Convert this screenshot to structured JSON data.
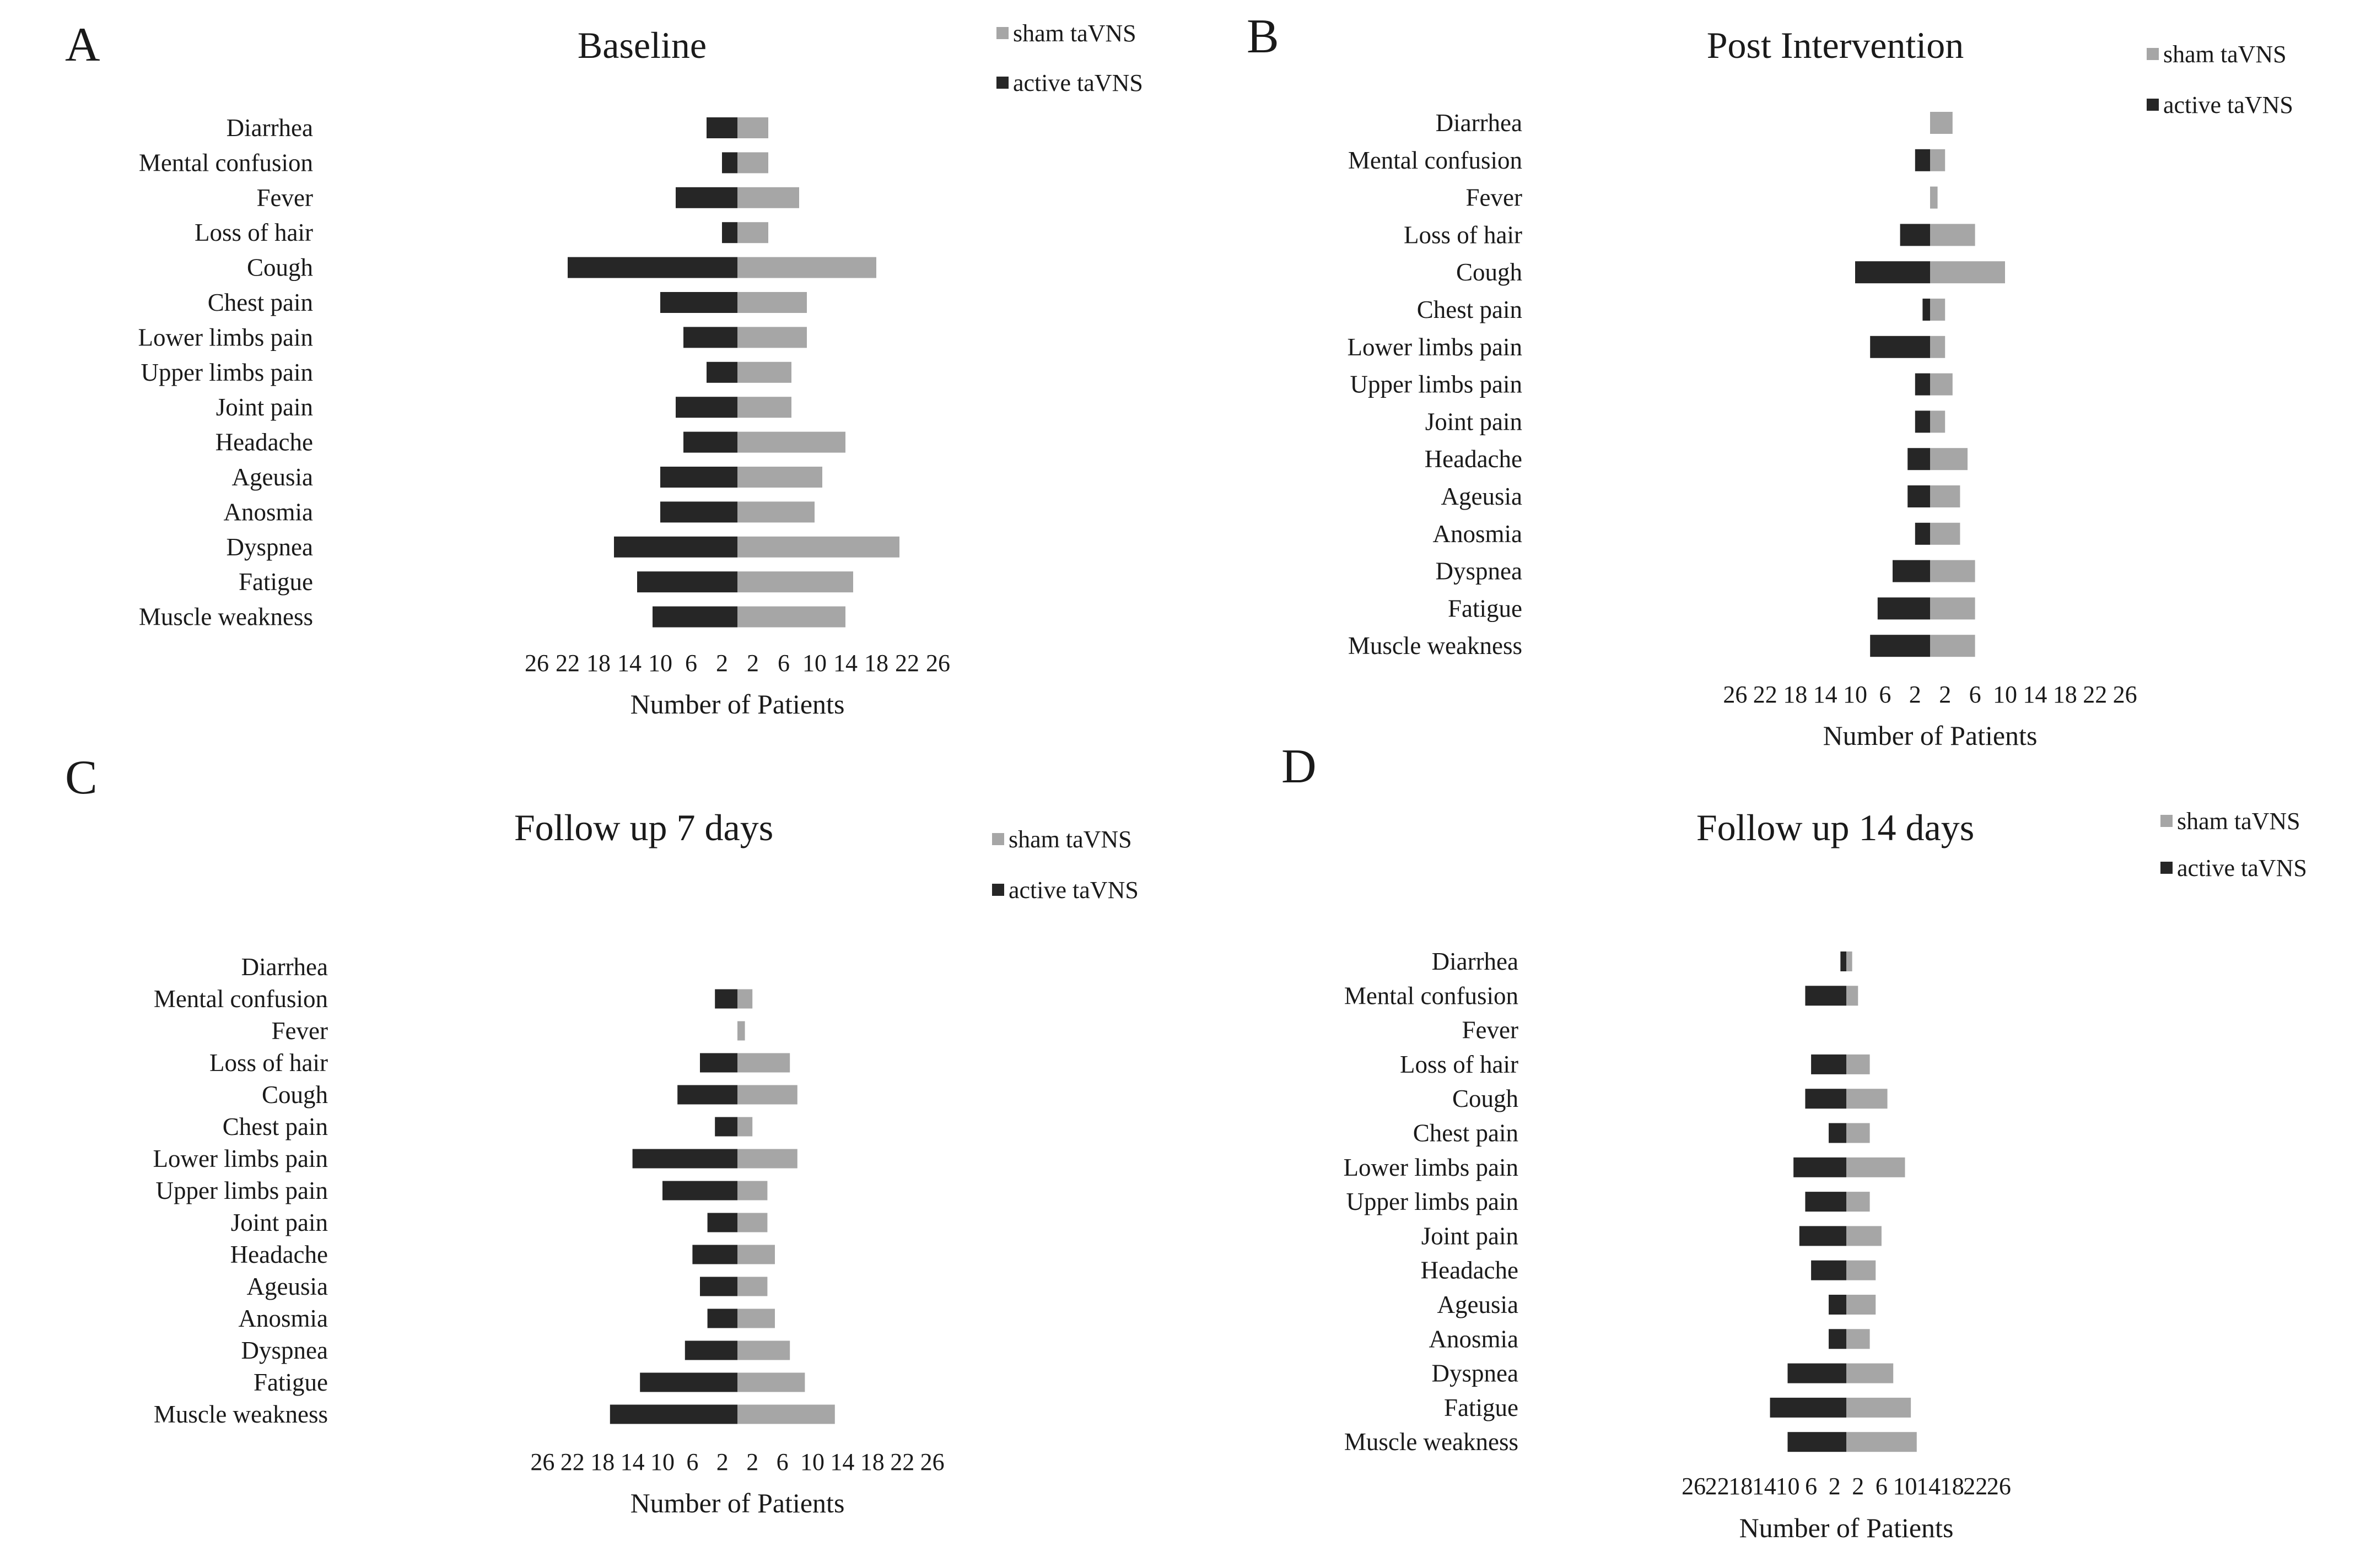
{
  "figure": {
    "background": "#ffffff",
    "colors": {
      "sham": "#a6a6a6",
      "active": "#262626"
    }
  },
  "chart_data": [
    {
      "panel_label": "A",
      "type": "bar",
      "orientation": "horizontal-butterfly",
      "title": "Baseline",
      "xlabel": "Number of Patients",
      "xlim": [
        -26,
        26
      ],
      "ticks": [
        -26,
        -22,
        -18,
        -14,
        -10,
        -6,
        -2,
        2,
        6,
        10,
        14,
        18,
        22,
        26
      ],
      "tick_labels": [
        "26",
        "22",
        "18",
        "14",
        "10",
        "6",
        "2",
        "2",
        "6",
        "10",
        "14",
        "18",
        "22",
        "26"
      ],
      "categories": [
        "Diarrhea",
        "Mental confusion",
        "Fever",
        "Loss of hair",
        "Cough",
        "Chest pain",
        "Lower limbs pain",
        "Upper limbs pain",
        "Joint pain",
        "Headache",
        "Ageusia",
        "Anosmia",
        "Dyspnea",
        "Fatigue",
        "Muscle weakness"
      ],
      "legend": [
        "sham taVNS",
        "active taVNS"
      ],
      "series": [
        {
          "name": "sham taVNS",
          "direction": "right",
          "values": [
            4,
            4,
            8,
            4,
            18,
            9,
            9,
            7,
            7,
            14,
            11,
            10,
            21,
            15,
            14
          ]
        },
        {
          "name": "active taVNS",
          "direction": "left",
          "values": [
            4,
            2,
            8,
            2,
            22,
            10,
            7,
            4,
            8,
            7,
            10,
            10,
            16,
            13,
            11
          ]
        }
      ]
    },
    {
      "panel_label": "B",
      "type": "bar",
      "orientation": "horizontal-butterfly",
      "title": "Post Intervention",
      "xlabel": "Number of Patients",
      "xlim": [
        -26,
        26
      ],
      "ticks": [
        -26,
        -22,
        -18,
        -14,
        -10,
        -6,
        -2,
        2,
        6,
        10,
        14,
        18,
        22,
        26
      ],
      "tick_labels": [
        "26",
        "22",
        "18",
        "14",
        "10",
        "6",
        "2",
        "2",
        "6",
        "10",
        "14",
        "18",
        "22",
        "26"
      ],
      "categories": [
        "Diarrhea",
        "Mental confusion",
        "Fever",
        "Loss of hair",
        "Cough",
        "Chest pain",
        "Lower limbs pain",
        "Upper limbs pain",
        "Joint pain",
        "Headache",
        "Ageusia",
        "Anosmia",
        "Dyspnea",
        "Fatigue",
        "Muscle weakness"
      ],
      "legend": [
        "sham taVNS",
        "active taVNS"
      ],
      "series": [
        {
          "name": "sham taVNS",
          "direction": "right",
          "values": [
            3,
            2,
            1,
            6,
            10,
            2,
            2,
            3,
            2,
            5,
            4,
            4,
            6,
            6,
            6
          ]
        },
        {
          "name": "active taVNS",
          "direction": "left",
          "values": [
            0,
            2,
            0,
            4,
            10,
            1,
            8,
            2,
            2,
            3,
            3,
            2,
            5,
            7,
            8
          ]
        }
      ]
    },
    {
      "panel_label": "C",
      "type": "bar",
      "orientation": "horizontal-butterfly",
      "title": "Follow up 7 days",
      "xlabel": "Number of Patients",
      "xlim": [
        -26,
        26
      ],
      "ticks": [
        -26,
        -22,
        -18,
        -14,
        -10,
        -6,
        -2,
        2,
        6,
        10,
        14,
        18,
        22,
        26
      ],
      "tick_labels": [
        "26",
        "22",
        "18",
        "14",
        "10",
        "6",
        "2",
        "2",
        "6",
        "10",
        "14",
        "18",
        "22",
        "26"
      ],
      "categories": [
        "Diarrhea",
        "Mental confusion",
        "Fever",
        "Loss of hair",
        "Cough",
        "Chest pain",
        "Lower limbs pain",
        "Upper limbs pain",
        "Joint pain",
        "Headache",
        "Ageusia",
        "Anosmia",
        "Dyspnea",
        "Fatigue",
        "Muscle weakness"
      ],
      "legend": [
        "sham taVNS",
        "active taVNS"
      ],
      "series": [
        {
          "name": "sham taVNS",
          "direction": "right",
          "values": [
            0,
            2,
            1,
            7,
            8,
            2,
            8,
            4,
            4,
            5,
            4,
            5,
            7,
            9,
            13
          ]
        },
        {
          "name": "active taVNS",
          "direction": "left",
          "values": [
            0,
            3,
            0,
            5,
            8,
            3,
            14,
            10,
            4,
            6,
            5,
            4,
            7,
            13,
            17
          ]
        }
      ]
    },
    {
      "panel_label": "D",
      "type": "bar",
      "orientation": "horizontal-butterfly",
      "title": "Follow up 14 days",
      "xlabel": "Number of Patients",
      "xlim": [
        -26,
        26
      ],
      "ticks": [
        -26,
        -22,
        -18,
        -14,
        -10,
        -6,
        -2,
        2,
        6,
        10,
        14,
        18,
        22,
        26
      ],
      "tick_labels": [
        "26",
        "22",
        "18",
        "14",
        "10",
        "6",
        "2",
        "2",
        "6",
        "10",
        "14",
        "18",
        "22",
        "26"
      ],
      "categories": [
        "Diarrhea",
        "Mental confusion",
        "Fever",
        "Loss of hair",
        "Cough",
        "Chest pain",
        "Lower limbs pain",
        "Upper limbs pain",
        "Joint pain",
        "Headache",
        "Ageusia",
        "Anosmia",
        "Dyspnea",
        "Fatigue",
        "Muscle weakness"
      ],
      "legend": [
        "sham taVNS",
        "active taVNS"
      ],
      "series": [
        {
          "name": "sham taVNS",
          "direction": "right",
          "values": [
            1,
            2,
            0,
            4,
            7,
            4,
            10,
            4,
            6,
            5,
            5,
            4,
            8,
            11,
            12
          ]
        },
        {
          "name": "active taVNS",
          "direction": "left",
          "values": [
            1,
            7,
            0,
            6,
            7,
            3,
            9,
            7,
            8,
            6,
            3,
            3,
            10,
            13,
            10
          ]
        }
      ]
    }
  ]
}
